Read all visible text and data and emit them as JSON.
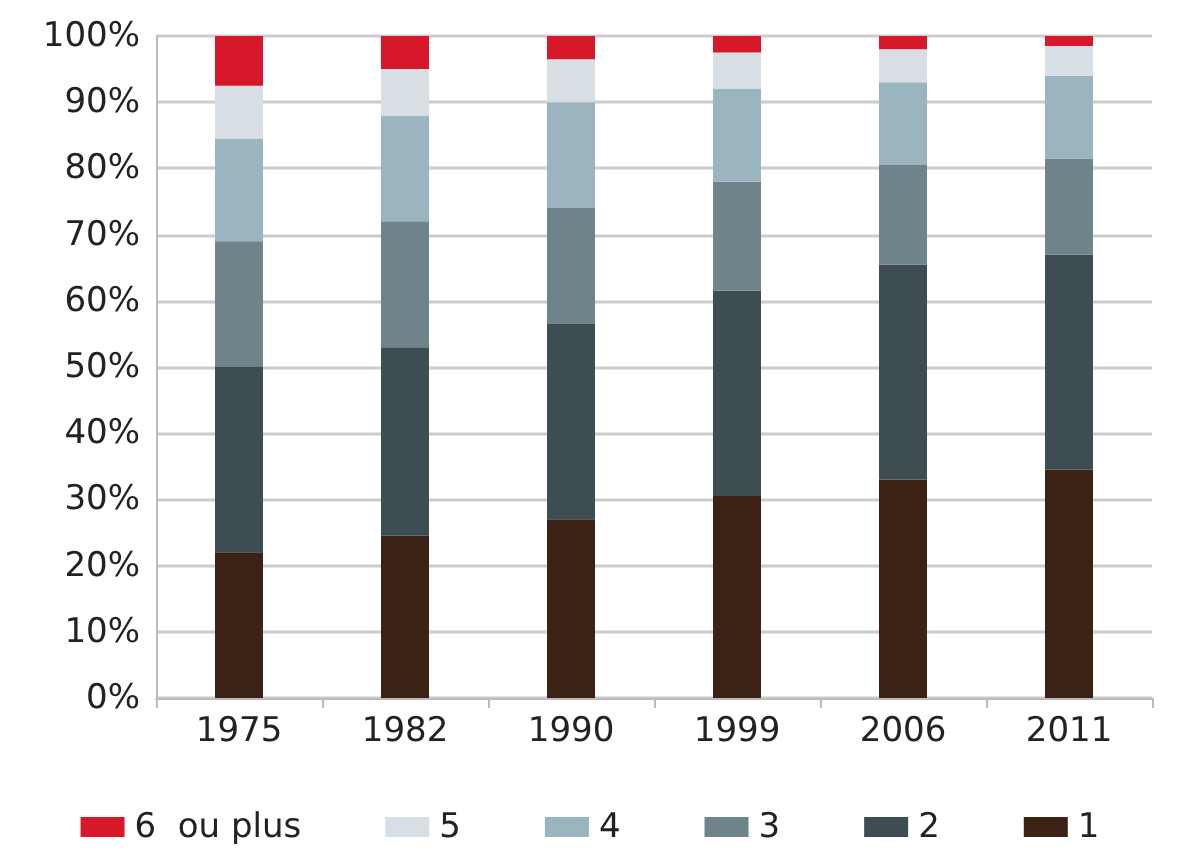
{
  "chart_data": {
    "type": "bar",
    "stacked": true,
    "categories": [
      "1975",
      "1982",
      "1990",
      "1999",
      "2006",
      "2011"
    ],
    "series": [
      {
        "name": "1",
        "color": "#3c2215",
        "values": [
          22,
          24.5,
          27,
          30.5,
          33,
          34.5
        ]
      },
      {
        "name": "2",
        "color": "#3e4d52",
        "values": [
          28,
          28.5,
          29.5,
          31,
          32.5,
          32.5
        ]
      },
      {
        "name": "3",
        "color": "#6f838b",
        "values": [
          19,
          19,
          17.5,
          16.5,
          15,
          14.5
        ]
      },
      {
        "name": "4",
        "color": "#9ab5c0",
        "values": [
          15.5,
          16,
          16,
          14,
          12.5,
          12.5
        ]
      },
      {
        "name": "5",
        "color": "#d7dfe5",
        "values": [
          8,
          7,
          6.5,
          5.5,
          5,
          4.5
        ]
      },
      {
        "name": "6  ou plus",
        "color": "#d7182a",
        "values": [
          7.5,
          5,
          3.5,
          2.5,
          2,
          1.5
        ]
      }
    ],
    "ylim": [
      0,
      100
    ],
    "yticks": [
      {
        "value": 0,
        "label": "0%"
      },
      {
        "value": 10,
        "label": "10%"
      },
      {
        "value": 20,
        "label": "20%"
      },
      {
        "value": 30,
        "label": "30%"
      },
      {
        "value": 40,
        "label": "40%"
      },
      {
        "value": 50,
        "label": "50%"
      },
      {
        "value": 60,
        "label": "60%"
      },
      {
        "value": 70,
        "label": "70%"
      },
      {
        "value": 80,
        "label": "80%"
      },
      {
        "value": 90,
        "label": "90%"
      },
      {
        "value": 100,
        "label": "100%"
      }
    ],
    "grid": "y",
    "legend": "bottom"
  }
}
